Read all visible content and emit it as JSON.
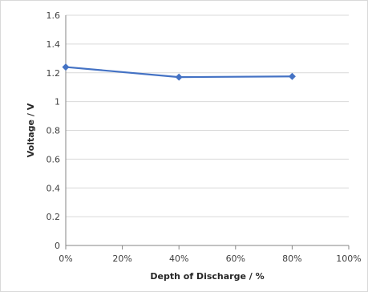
{
  "chart_data": {
    "type": "line",
    "title": "",
    "xlabel": "Depth of Discharge / %",
    "ylabel": "Voltage  /  V",
    "x": [
      0,
      40,
      80
    ],
    "series": [
      {
        "values": [
          1.24,
          1.17,
          1.175
        ],
        "color": "#4472c4",
        "marker": "diamond"
      }
    ],
    "xlim": [
      0,
      100
    ],
    "ylim": [
      0,
      1.6
    ],
    "x_ticks": [
      0,
      20,
      40,
      60,
      80,
      100
    ],
    "x_tick_labels": [
      "0%",
      "20%",
      "40%",
      "60%",
      "80%",
      "100%"
    ],
    "y_ticks": [
      0,
      0.2,
      0.4,
      0.6,
      0.8,
      1,
      1.2,
      1.4,
      1.6
    ],
    "y_tick_labels": [
      "0",
      "0.2",
      "0.4",
      "0.6",
      "0.8",
      "1",
      "1.2",
      "1.4",
      "1.6"
    ],
    "grid": "horizontal",
    "legend": "none"
  }
}
